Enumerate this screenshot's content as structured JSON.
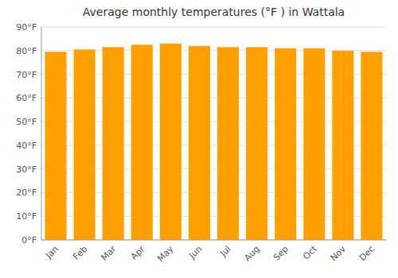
{
  "chart_data": {
    "type": "bar",
    "title": "Average monthly temperatures (°F ) in Wattala",
    "categories": [
      "Jan",
      "Feb",
      "Mar",
      "Apr",
      "May",
      "Jun",
      "Jul",
      "Aug",
      "Sep",
      "Oct",
      "Nov",
      "Dec"
    ],
    "values": [
      79.5,
      80.5,
      81.5,
      82.5,
      83.0,
      82.0,
      81.5,
      81.5,
      81.0,
      81.0,
      80.0,
      79.5
    ],
    "color": "#FFA000",
    "ylim": [
      0,
      90
    ],
    "yticks": [
      {
        "value": 0,
        "label": "0°F"
      },
      {
        "value": 10,
        "label": "10°F"
      },
      {
        "value": 20,
        "label": "20°F"
      },
      {
        "value": 30,
        "label": "30°F"
      },
      {
        "value": 40,
        "label": "40°F"
      },
      {
        "value": 50,
        "label": "50°F"
      },
      {
        "value": 60,
        "label": "60°F"
      },
      {
        "value": 70,
        "label": "70°F"
      },
      {
        "value": 80,
        "label": "80°F"
      },
      {
        "value": 90,
        "label": "90°F"
      }
    ],
    "grid": true
  }
}
